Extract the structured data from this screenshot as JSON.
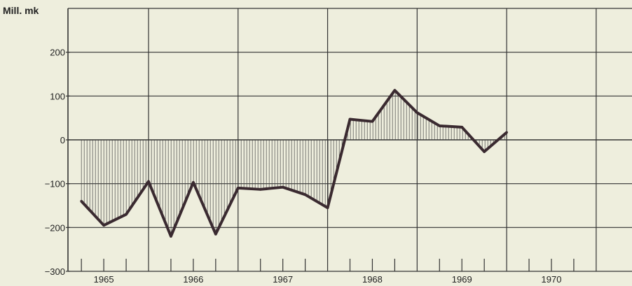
{
  "chart_data": {
    "type": "line",
    "title": "",
    "xlabel": "",
    "ylabel": "Mill. mk",
    "ylim": [
      -300,
      300
    ],
    "yticks": [
      -300,
      -200,
      -100,
      0,
      100,
      200
    ],
    "xlim": [
      1964.6,
      1970.9
    ],
    "year_labels": [
      "1965",
      "1966",
      "1967",
      "1968",
      "1969",
      "1970"
    ],
    "grid": true,
    "fill_to_zero": "vertical hatching",
    "colors": {
      "line": "#3a2a30",
      "grid": "#333333",
      "hatch": "#444444",
      "background": "#eeeedd"
    },
    "series": [
      {
        "x": [
          1964.75,
          1965.0,
          1965.25,
          1965.5,
          1965.75,
          1966.0,
          1966.25,
          1966.5,
          1966.75,
          1967.0,
          1967.25,
          1967.5,
          1967.75,
          1968.0,
          1968.25,
          1968.5,
          1968.75,
          1969.0,
          1969.25,
          1969.5
        ],
        "y": [
          -140,
          -195,
          -170,
          -95,
          -220,
          -97,
          -215,
          -110,
          -113,
          -108,
          -125,
          -155,
          47,
          42,
          113,
          62,
          32,
          29,
          -27,
          17
        ]
      }
    ]
  }
}
